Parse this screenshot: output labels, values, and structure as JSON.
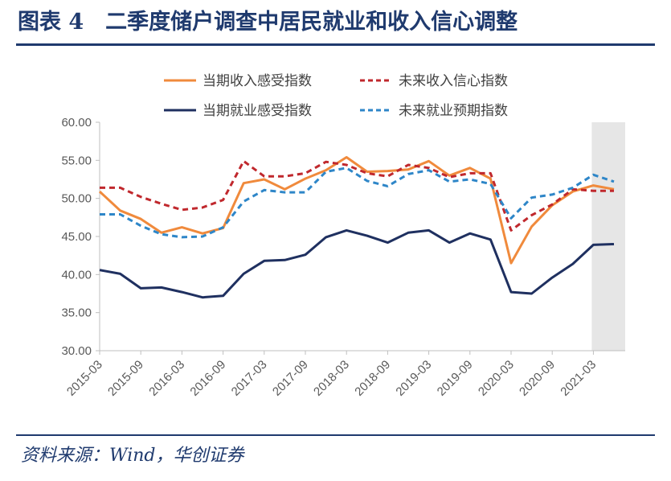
{
  "figure": {
    "title": "图表 4　二季度储户调查中居民就业和收入信心调整",
    "source": "资料来源：Wind，华创证券"
  },
  "chart_data": {
    "type": "line",
    "title": "",
    "xlabel": "",
    "ylabel": "",
    "ylim": [
      30,
      60
    ],
    "yticks": [
      "30.00",
      "35.00",
      "40.00",
      "45.00",
      "50.00",
      "55.00",
      "60.00"
    ],
    "x": [
      "2015-03",
      "2015-06",
      "2015-09",
      "2015-12",
      "2016-03",
      "2016-06",
      "2016-09",
      "2016-12",
      "2017-03",
      "2017-06",
      "2017-09",
      "2017-12",
      "2018-03",
      "2018-06",
      "2018-09",
      "2018-12",
      "2019-03",
      "2019-06",
      "2019-09",
      "2019-12",
      "2020-03",
      "2020-06",
      "2020-09",
      "2020-12",
      "2021-03",
      "2021-06"
    ],
    "xtick_labels": [
      "2015-03",
      "2015-09",
      "2016-03",
      "2016-09",
      "2017-03",
      "2017-09",
      "2018-03",
      "2018-09",
      "2019-03",
      "2019-09",
      "2020-03",
      "2020-09",
      "2021-03"
    ],
    "shaded_region": [
      "2021-03",
      "2021-06"
    ],
    "grid": false,
    "legend": "top",
    "series": [
      {
        "name": "当期收入感受指数",
        "color": "#f08a3c",
        "style": "solid",
        "values": [
          50.9,
          48.4,
          47.3,
          45.5,
          46.2,
          45.4,
          46.1,
          52.0,
          52.5,
          51.2,
          52.6,
          53.7,
          55.4,
          53.5,
          53.6,
          53.8,
          54.9,
          53.0,
          54.0,
          52.6,
          41.5,
          46.3,
          49.1,
          50.9,
          51.7,
          51.2
        ]
      },
      {
        "name": "未来收入信心指数",
        "color": "#c0282d",
        "style": "dashed",
        "values": [
          51.4,
          51.4,
          50.2,
          49.3,
          48.5,
          48.8,
          49.8,
          54.9,
          52.9,
          52.9,
          53.3,
          54.8,
          54.4,
          53.3,
          52.9,
          54.4,
          54.0,
          52.8,
          53.3,
          53.3,
          45.8,
          47.8,
          49.2,
          51.2,
          51.0,
          51.0
        ]
      },
      {
        "name": "当期就业感受指数",
        "color": "#1f3060",
        "style": "solid",
        "values": [
          40.6,
          40.1,
          38.2,
          38.3,
          37.7,
          37.0,
          37.2,
          40.1,
          41.8,
          41.9,
          42.6,
          44.9,
          45.8,
          45.1,
          44.2,
          45.5,
          45.8,
          44.2,
          45.4,
          44.6,
          37.7,
          37.5,
          39.6,
          41.4,
          43.9,
          44.0
        ]
      },
      {
        "name": "未来就业预期指数",
        "color": "#2e86c8",
        "style": "dashed",
        "values": [
          47.9,
          47.9,
          46.4,
          45.3,
          44.9,
          45.0,
          46.2,
          49.6,
          51.1,
          50.8,
          50.8,
          53.5,
          54.0,
          52.3,
          51.6,
          53.2,
          53.7,
          52.2,
          52.5,
          51.9,
          47.4,
          50.1,
          50.5,
          51.4,
          53.1,
          52.2
        ]
      }
    ]
  }
}
